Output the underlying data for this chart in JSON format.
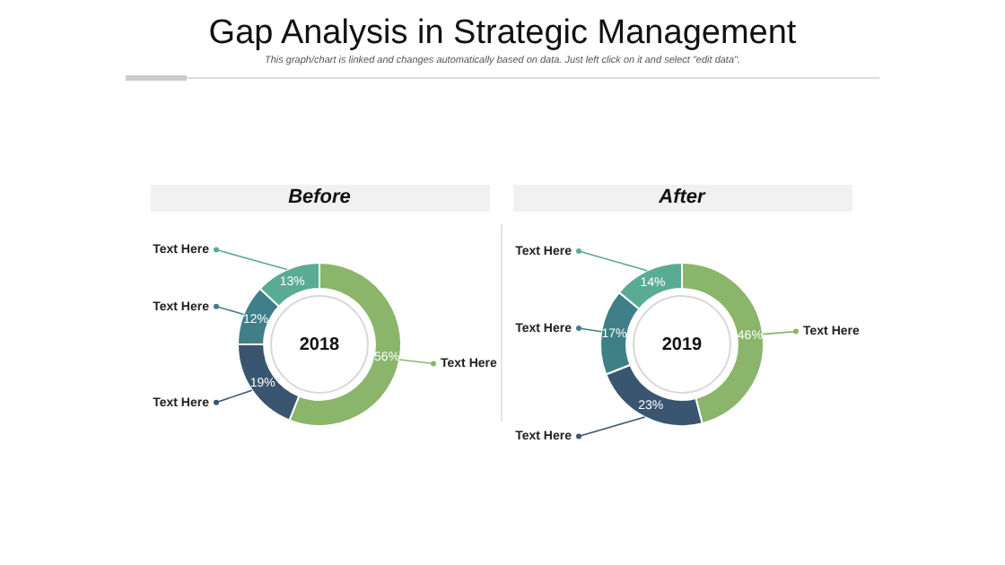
{
  "chart_data": [
    {
      "type": "other",
      "title": "Gap Analysis in Strategic Management",
      "subtitle": "This graph/chart is linked and changes automatically based on data. Just left click on it and select \"edit data\"."
    },
    {
      "type": "donut",
      "title": "Before",
      "categories": [
        "Text Here",
        "Text Here",
        "Text Here",
        "Text Here"
      ],
      "values": [
        56,
        19,
        12,
        13
      ],
      "colors": [
        "#8ab56a",
        "#3a5570",
        "#3f7f87",
        "#5aab94"
      ],
      "value_labels": [
        "56%",
        "19%",
        "12%",
        "13%"
      ],
      "annotations": [
        "2018"
      ]
    },
    {
      "type": "donut",
      "title": "After",
      "categories": [
        "Text Here",
        "Text Here",
        "Text Here",
        "Text Here"
      ],
      "values": [
        46,
        23,
        17,
        14
      ],
      "colors": [
        "#8ab56a",
        "#3a5570",
        "#3f7f87",
        "#5aab94"
      ],
      "value_labels": [
        "46%",
        "23%",
        "17%",
        "14%"
      ],
      "annotations": [
        "2019"
      ]
    }
  ]
}
